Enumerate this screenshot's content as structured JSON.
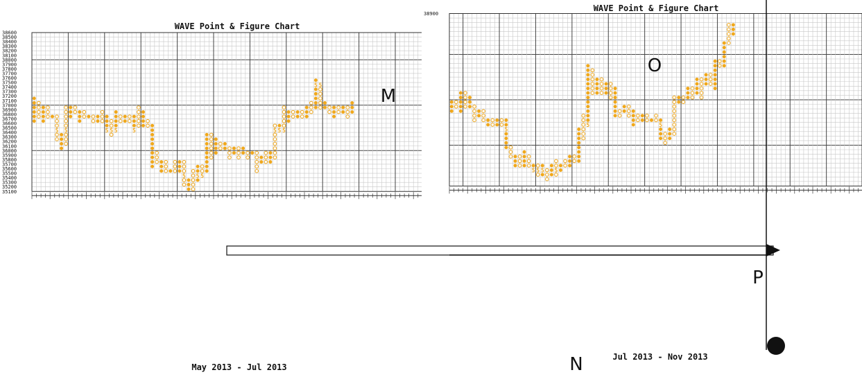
{
  "chart_data": [
    {
      "type": "point-and-figure",
      "title": "WAVE Point & Figure Chart",
      "xlabel": "May 2013 - Jul 2013",
      "ylim": [
        35100,
        38600
      ],
      "y_ticks": [
        38600,
        38500,
        38400,
        38300,
        38200,
        38100,
        38000,
        37900,
        37800,
        37700,
        37600,
        37500,
        37400,
        37300,
        37200,
        37100,
        37000,
        36900,
        36800,
        36700,
        36600,
        36500,
        36400,
        36300,
        36200,
        36100,
        36000,
        35900,
        35800,
        35700,
        35600,
        35500,
        35400,
        35300,
        35200,
        35100
      ],
      "marker_color": "#f0a81c",
      "columns": [
        {
          "kind": "x",
          "low": 36700,
          "high": 37200
        },
        {
          "kind": "o",
          "low": 36800,
          "high": 37100
        },
        {
          "kind": "x",
          "low": 36700,
          "high": 37000
        },
        {
          "kind": "o",
          "low": 36800,
          "high": 37000
        },
        {
          "kind": "x",
          "low": 36800,
          "high": 36800
        },
        {
          "kind": "o",
          "low": 36300,
          "high": 36800,
          "month_mark": "5",
          "month_at": 36500
        },
        {
          "kind": "x",
          "low": 36100,
          "high": 36400
        },
        {
          "kind": "o",
          "low": 36200,
          "high": 37000,
          "month_mark": "5",
          "month_at": 36500
        },
        {
          "kind": "x",
          "low": 36800,
          "high": 37000
        },
        {
          "kind": "o",
          "low": 36900,
          "high": 37000
        },
        {
          "kind": "x",
          "low": 36700,
          "high": 36900
        },
        {
          "kind": "o",
          "low": 36800,
          "high": 36900
        },
        {
          "kind": "x",
          "low": 36800,
          "high": 36800
        },
        {
          "kind": "o",
          "low": 36700,
          "high": 36800
        },
        {
          "kind": "x",
          "low": 36700,
          "high": 36800
        },
        {
          "kind": "o",
          "low": 36700,
          "high": 36900
        },
        {
          "kind": "x",
          "low": 36500,
          "high": 36800,
          "month_mark": "5",
          "month_at": 36500
        },
        {
          "kind": "o",
          "low": 36400,
          "high": 36700,
          "month_mark": "5",
          "month_at": 36500
        },
        {
          "kind": "x",
          "low": 36500,
          "high": 36900,
          "month_mark": "5",
          "month_at": 36500
        },
        {
          "kind": "o",
          "low": 36700,
          "high": 36800
        },
        {
          "kind": "x",
          "low": 36700,
          "high": 36800
        },
        {
          "kind": "o",
          "low": 36700,
          "high": 36800
        },
        {
          "kind": "x",
          "low": 36500,
          "high": 36800,
          "month_mark": "5",
          "month_at": 36500
        },
        {
          "kind": "o",
          "low": 36600,
          "high": 37000
        },
        {
          "kind": "x",
          "low": 36600,
          "high": 36900
        },
        {
          "kind": "o",
          "low": 36600,
          "high": 36700
        },
        {
          "kind": "x",
          "low": 35700,
          "high": 36600
        },
        {
          "kind": "o",
          "low": 35800,
          "high": 36000
        },
        {
          "kind": "x",
          "low": 35600,
          "high": 35800
        },
        {
          "kind": "o",
          "low": 35600,
          "high": 35800,
          "month_mark": "5",
          "month_at": 35500
        },
        {
          "kind": "x",
          "low": 35600,
          "high": 35600,
          "month_mark": "5",
          "month_at": 35500
        },
        {
          "kind": "o",
          "low": 35600,
          "high": 35800
        },
        {
          "kind": "x",
          "low": 35600,
          "high": 35800
        },
        {
          "kind": "o",
          "low": 35300,
          "high": 35800,
          "month_mark": "5",
          "month_at": 35500
        },
        {
          "kind": "x",
          "low": 35200,
          "high": 35400
        },
        {
          "kind": "o",
          "low": 35200,
          "high": 35600
        },
        {
          "kind": "x",
          "low": 35400,
          "high": 35700,
          "month_mark": "5",
          "month_at": 35500
        },
        {
          "kind": "o",
          "low": 35500,
          "high": 35700,
          "month_mark": "5",
          "month_at": 35500
        },
        {
          "kind": "x",
          "low": 35600,
          "high": 36400
        },
        {
          "kind": "o",
          "low": 35900,
          "high": 36400
        },
        {
          "kind": "x",
          "low": 36000,
          "high": 36300
        },
        {
          "kind": "o",
          "low": 36100,
          "high": 36200
        },
        {
          "kind": "x",
          "low": 36100,
          "high": 36200
        },
        {
          "kind": "o",
          "low": 35900,
          "high": 36100
        },
        {
          "kind": "x",
          "low": 36000,
          "high": 36100
        },
        {
          "kind": "o",
          "low": 35900,
          "high": 36100
        },
        {
          "kind": "x",
          "low": 36000,
          "high": 36100
        },
        {
          "kind": "o",
          "low": 35900,
          "high": 36000
        },
        {
          "kind": "x",
          "low": 36000,
          "high": 36000
        },
        {
          "kind": "o",
          "low": 35600,
          "high": 36000
        },
        {
          "kind": "x",
          "low": 35800,
          "high": 35900
        },
        {
          "kind": "o",
          "low": 35800,
          "high": 36000
        },
        {
          "kind": "x",
          "low": 35800,
          "high": 36000
        },
        {
          "kind": "o",
          "low": 35900,
          "high": 36600,
          "month_mark": "5",
          "month_at": 36500
        },
        {
          "kind": "x",
          "low": 36500,
          "high": 36600,
          "month_mark": "5",
          "month_at": 36500
        },
        {
          "kind": "o",
          "low": 36500,
          "high": 37000,
          "month_mark": "5",
          "month_at": 36500
        },
        {
          "kind": "x",
          "low": 36700,
          "high": 36900
        },
        {
          "kind": "o",
          "low": 36800,
          "high": 36900
        },
        {
          "kind": "x",
          "low": 36800,
          "high": 36900
        },
        {
          "kind": "o",
          "low": 36800,
          "high": 36900
        },
        {
          "kind": "x",
          "low": 36800,
          "high": 37000
        },
        {
          "kind": "o",
          "low": 36900,
          "high": 37100
        },
        {
          "kind": "x",
          "low": 37000,
          "high": 37600,
          "month_mark": "5",
          "month_at": 37500
        },
        {
          "kind": "o",
          "low": 37000,
          "high": 37500,
          "month_mark": "5",
          "month_at": 37500
        },
        {
          "kind": "x",
          "low": 37000,
          "high": 37100
        },
        {
          "kind": "o",
          "low": 36900,
          "high": 37000
        },
        {
          "kind": "x",
          "low": 36800,
          "high": 37000
        },
        {
          "kind": "o",
          "low": 36900,
          "high": 37000
        },
        {
          "kind": "x",
          "low": 36900,
          "high": 37000
        },
        {
          "kind": "o",
          "low": 36800,
          "high": 37000
        },
        {
          "kind": "x",
          "low": 36900,
          "high": 37100
        }
      ]
    },
    {
      "type": "point-and-figure",
      "title": "WAVE Point & Figure Chart",
      "xlabel": "Jul 2013 - Nov 2013",
      "ylim": [
        35100,
        38900
      ],
      "y_ticks": [
        38900
      ],
      "marker_color": "#f0a81c",
      "columns": [
        {
          "kind": "x",
          "low": 36800,
          "high": 37000
        },
        {
          "kind": "o",
          "low": 36900,
          "high": 37000
        },
        {
          "kind": "x",
          "low": 36800,
          "high": 37200
        },
        {
          "kind": "o",
          "low": 36900,
          "high": 37200
        },
        {
          "kind": "x",
          "low": 36900,
          "high": 37100
        },
        {
          "kind": "o",
          "low": 36600,
          "high": 36900
        },
        {
          "kind": "x",
          "low": 36700,
          "high": 36800
        },
        {
          "kind": "o",
          "low": 36600,
          "high": 36800
        },
        {
          "kind": "x",
          "low": 36500,
          "high": 36600
        },
        {
          "kind": "o",
          "low": 36500,
          "high": 36600
        },
        {
          "kind": "x",
          "low": 36500,
          "high": 36600
        },
        {
          "kind": "o",
          "low": 36500,
          "high": 36600
        },
        {
          "kind": "x",
          "low": 36000,
          "high": 36600,
          "month_mark": "5",
          "month_at": 36400
        },
        {
          "kind": "o",
          "low": 35800,
          "high": 36000
        },
        {
          "kind": "x",
          "low": 35600,
          "high": 35800
        },
        {
          "kind": "o",
          "low": 35600,
          "high": 35800
        },
        {
          "kind": "x",
          "low": 35600,
          "high": 35900,
          "month_mark": "5",
          "month_at": 35500
        },
        {
          "kind": "o",
          "low": 35600,
          "high": 35800
        },
        {
          "kind": "x",
          "low": 35500,
          "high": 35600,
          "month_mark": "5",
          "month_at": 35500
        },
        {
          "kind": "o",
          "low": 35400,
          "high": 35600,
          "month_mark": "5",
          "month_at": 35500
        },
        {
          "kind": "x",
          "low": 35400,
          "high": 35600,
          "month_mark": "5",
          "month_at": 35500
        },
        {
          "kind": "o",
          "low": 35300,
          "high": 35500
        },
        {
          "kind": "x",
          "low": 35400,
          "high": 35600
        },
        {
          "kind": "o",
          "low": 35400,
          "high": 35700,
          "month_mark": "5",
          "month_at": 35500
        },
        {
          "kind": "x",
          "low": 35500,
          "high": 35600
        },
        {
          "kind": "o",
          "low": 35600,
          "high": 35700
        },
        {
          "kind": "x",
          "low": 35600,
          "high": 35800
        },
        {
          "kind": "o",
          "low": 35700,
          "high": 35800
        },
        {
          "kind": "x",
          "low": 35700,
          "high": 36400
        },
        {
          "kind": "o",
          "low": 36200,
          "high": 36700
        },
        {
          "kind": "x",
          "low": 36500,
          "high": 37800,
          "month_mark": "5",
          "month_at": 36500
        },
        {
          "kind": "o",
          "low": 37200,
          "high": 37700
        },
        {
          "kind": "x",
          "low": 37200,
          "high": 37500
        },
        {
          "kind": "o",
          "low": 37200,
          "high": 37500
        },
        {
          "kind": "x",
          "low": 37200,
          "high": 37400
        },
        {
          "kind": "o",
          "low": 37100,
          "high": 37400
        },
        {
          "kind": "x",
          "low": 36700,
          "high": 37300
        },
        {
          "kind": "o",
          "low": 36700,
          "high": 36800
        },
        {
          "kind": "x",
          "low": 36800,
          "high": 36900
        },
        {
          "kind": "o",
          "low": 36700,
          "high": 36900
        },
        {
          "kind": "x",
          "low": 36500,
          "high": 36800
        },
        {
          "kind": "o",
          "low": 36600,
          "high": 36700
        },
        {
          "kind": "x",
          "low": 36600,
          "high": 36700
        },
        {
          "kind": "o",
          "low": 36600,
          "high": 36700
        },
        {
          "kind": "x",
          "low": 36600,
          "high": 36600
        },
        {
          "kind": "o",
          "low": 36600,
          "high": 36700
        },
        {
          "kind": "x",
          "low": 36200,
          "high": 36600,
          "month_mark": "5",
          "month_at": 36500
        },
        {
          "kind": "o",
          "low": 36100,
          "high": 36300
        },
        {
          "kind": "x",
          "low": 36200,
          "high": 36400
        },
        {
          "kind": "o",
          "low": 36300,
          "high": 37100
        },
        {
          "kind": "x",
          "low": 37000,
          "high": 37100
        },
        {
          "kind": "o",
          "low": 37000,
          "high": 37100
        },
        {
          "kind": "x",
          "low": 37100,
          "high": 37300
        },
        {
          "kind": "o",
          "low": 37100,
          "high": 37300
        },
        {
          "kind": "x",
          "low": 37200,
          "high": 37500
        },
        {
          "kind": "o",
          "low": 37100,
          "high": 37500
        },
        {
          "kind": "x",
          "low": 37400,
          "high": 37600
        },
        {
          "kind": "o",
          "low": 37400,
          "high": 37600
        },
        {
          "kind": "x",
          "low": 37300,
          "high": 37900
        },
        {
          "kind": "o",
          "low": 37800,
          "high": 37900
        },
        {
          "kind": "x",
          "low": 37800,
          "high": 38300
        },
        {
          "kind": "o",
          "low": 38300,
          "high": 38700
        },
        {
          "kind": "x",
          "low": 38500,
          "high": 38700
        }
      ]
    }
  ],
  "annotations": {
    "m": "M",
    "o": "O",
    "p": "P",
    "n": "N"
  }
}
